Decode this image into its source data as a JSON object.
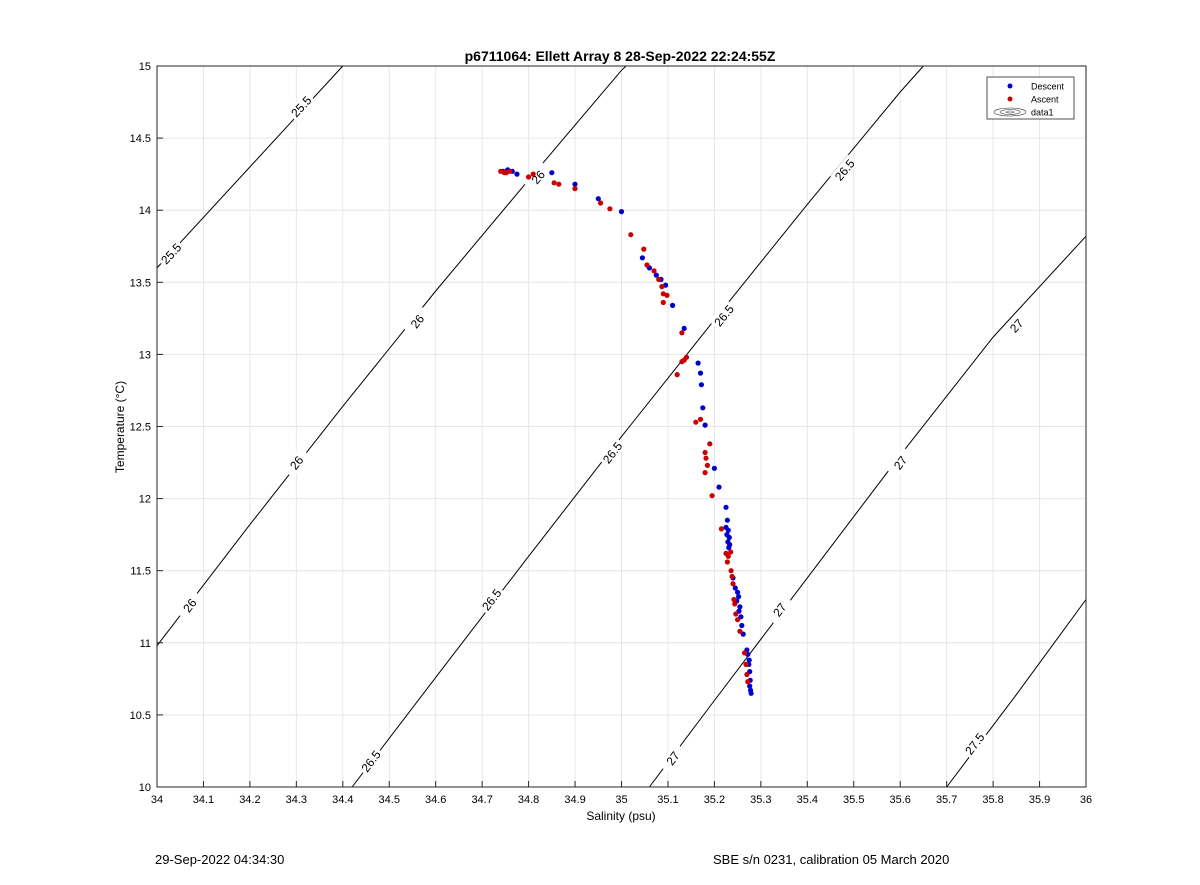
{
  "chart_data": {
    "type": "scatter",
    "title": "p6711064: Ellett Array 8 28-Sep-2022 22:24:55Z",
    "xlabel": "Salinity (psu)",
    "ylabel": "Temperature (°C)",
    "xlim": [
      34,
      36
    ],
    "ylim": [
      10,
      15
    ],
    "xticks": [
      "34",
      "34.1",
      "34.2",
      "34.3",
      "34.4",
      "34.5",
      "34.6",
      "34.7",
      "34.8",
      "34.9",
      "35",
      "35.1",
      "35.2",
      "35.3",
      "35.4",
      "35.5",
      "35.6",
      "35.7",
      "35.8",
      "35.9",
      "36"
    ],
    "yticks": [
      "10",
      "10.5",
      "11",
      "11.5",
      "12",
      "12.5",
      "13",
      "13.5",
      "14",
      "14.5",
      "15"
    ],
    "grid": true,
    "legend_position": "top-right",
    "legend": [
      "Descent",
      "Ascent",
      "data1"
    ],
    "series": [
      {
        "name": "Descent",
        "color": "#0000cc",
        "points": [
          [
            34.745,
            14.27
          ],
          [
            34.755,
            14.28
          ],
          [
            34.765,
            14.27
          ],
          [
            34.775,
            14.25
          ],
          [
            34.85,
            14.26
          ],
          [
            34.9,
            14.18
          ],
          [
            34.95,
            14.08
          ],
          [
            35.0,
            13.99
          ],
          [
            35.045,
            13.67
          ],
          [
            35.06,
            13.6
          ],
          [
            35.075,
            13.55
          ],
          [
            35.085,
            13.52
          ],
          [
            35.095,
            13.48
          ],
          [
            35.11,
            13.34
          ],
          [
            35.135,
            13.18
          ],
          [
            35.165,
            12.94
          ],
          [
            35.17,
            12.87
          ],
          [
            35.172,
            12.79
          ],
          [
            35.175,
            12.63
          ],
          [
            35.18,
            12.51
          ],
          [
            35.2,
            12.21
          ],
          [
            35.21,
            12.08
          ],
          [
            35.225,
            11.94
          ],
          [
            35.228,
            11.85
          ],
          [
            35.225,
            11.8
          ],
          [
            35.23,
            11.78
          ],
          [
            35.227,
            11.75
          ],
          [
            35.232,
            11.73
          ],
          [
            35.229,
            11.7
          ],
          [
            35.233,
            11.68
          ],
          [
            35.231,
            11.66
          ],
          [
            35.24,
            11.45
          ],
          [
            35.245,
            11.38
          ],
          [
            35.25,
            11.35
          ],
          [
            35.252,
            11.32
          ],
          [
            35.248,
            11.29
          ],
          [
            35.255,
            11.25
          ],
          [
            35.253,
            11.22
          ],
          [
            35.257,
            11.18
          ],
          [
            35.259,
            11.12
          ],
          [
            35.262,
            11.06
          ],
          [
            35.27,
            10.95
          ],
          [
            35.272,
            10.92
          ],
          [
            35.275,
            10.88
          ],
          [
            35.274,
            10.85
          ],
          [
            35.276,
            10.8
          ],
          [
            35.277,
            10.74
          ],
          [
            35.276,
            10.7
          ],
          [
            35.278,
            10.67
          ],
          [
            35.279,
            10.65
          ]
        ]
      },
      {
        "name": "Ascent",
        "color": "#cc0000",
        "points": [
          [
            34.74,
            14.27
          ],
          [
            34.748,
            14.26
          ],
          [
            34.752,
            14.26
          ],
          [
            34.76,
            14.27
          ],
          [
            34.8,
            14.23
          ],
          [
            34.81,
            14.25
          ],
          [
            34.855,
            14.19
          ],
          [
            34.865,
            14.18
          ],
          [
            34.9,
            14.15
          ],
          [
            34.955,
            14.05
          ],
          [
            34.975,
            14.01
          ],
          [
            35.02,
            13.83
          ],
          [
            35.048,
            13.73
          ],
          [
            35.055,
            13.62
          ],
          [
            35.07,
            13.58
          ],
          [
            35.08,
            13.52
          ],
          [
            35.087,
            13.47
          ],
          [
            35.09,
            13.42
          ],
          [
            35.098,
            13.41
          ],
          [
            35.09,
            13.36
          ],
          [
            35.13,
            13.15
          ],
          [
            35.12,
            12.86
          ],
          [
            35.13,
            12.95
          ],
          [
            35.135,
            12.96
          ],
          [
            35.14,
            12.98
          ],
          [
            35.16,
            12.53
          ],
          [
            35.17,
            12.55
          ],
          [
            35.18,
            12.32
          ],
          [
            35.182,
            12.28
          ],
          [
            35.185,
            12.23
          ],
          [
            35.18,
            12.18
          ],
          [
            35.19,
            12.38
          ],
          [
            35.195,
            12.02
          ],
          [
            35.215,
            11.79
          ],
          [
            35.225,
            11.62
          ],
          [
            35.23,
            11.6
          ],
          [
            35.235,
            11.63
          ],
          [
            35.228,
            11.56
          ],
          [
            35.236,
            11.5
          ],
          [
            35.238,
            11.46
          ],
          [
            35.24,
            11.41
          ],
          [
            35.242,
            11.3
          ],
          [
            35.244,
            11.27
          ],
          [
            35.246,
            11.2
          ],
          [
            35.25,
            11.16
          ],
          [
            35.255,
            11.08
          ],
          [
            35.265,
            10.93
          ],
          [
            35.268,
            10.85
          ],
          [
            35.27,
            10.78
          ],
          [
            35.272,
            10.73
          ]
        ]
      }
    ],
    "isopycnals": [
      {
        "label": "25.5",
        "points": [
          [
            34.0,
            13.6
          ],
          [
            34.4,
            15.0
          ]
        ],
        "label_positions": [
          [
            34.03,
            13.7
          ],
          [
            34.31,
            14.72
          ]
        ]
      },
      {
        "label": "26",
        "points": [
          [
            34.0,
            10.98
          ],
          [
            34.2,
            11.82
          ],
          [
            34.4,
            12.64
          ],
          [
            34.6,
            13.44
          ],
          [
            34.8,
            14.21
          ],
          [
            35.0,
            14.97
          ],
          [
            35.01,
            15.0
          ]
        ],
        "label_positions": [
          [
            34.07,
            11.26
          ],
          [
            34.3,
            12.25
          ],
          [
            34.56,
            13.23
          ],
          [
            34.82,
            14.23
          ]
        ]
      },
      {
        "label": "26.5",
        "points": [
          [
            34.42,
            10.0
          ],
          [
            34.6,
            10.76
          ],
          [
            34.8,
            11.6
          ],
          [
            35.0,
            12.43
          ],
          [
            35.2,
            13.24
          ],
          [
            35.4,
            14.04
          ],
          [
            35.6,
            14.82
          ],
          [
            35.65,
            15.0
          ]
        ],
        "label_positions": [
          [
            34.46,
            10.18
          ],
          [
            34.72,
            11.3
          ],
          [
            34.98,
            12.32
          ],
          [
            35.22,
            13.27
          ],
          [
            35.48,
            14.28
          ]
        ]
      },
      {
        "label": "27",
        "points": [
          [
            35.06,
            10.0
          ],
          [
            35.2,
            10.6
          ],
          [
            35.4,
            11.45
          ],
          [
            35.6,
            12.3
          ],
          [
            35.8,
            13.12
          ],
          [
            36.0,
            13.82
          ]
        ],
        "label_positions": [
          [
            35.11,
            10.2
          ],
          [
            35.34,
            11.23
          ],
          [
            35.6,
            12.25
          ],
          [
            35.85,
            13.2
          ]
        ]
      },
      {
        "label": "27.5",
        "points": [
          [
            35.7,
            10.0
          ],
          [
            35.85,
            10.64
          ],
          [
            36.0,
            11.3
          ]
        ],
        "label_positions": [
          [
            35.76,
            10.3
          ]
        ]
      }
    ]
  },
  "footer": {
    "left": "29-Sep-2022 04:34:30",
    "right": "SBE s/n 0231, calibration 05 March 2020"
  }
}
